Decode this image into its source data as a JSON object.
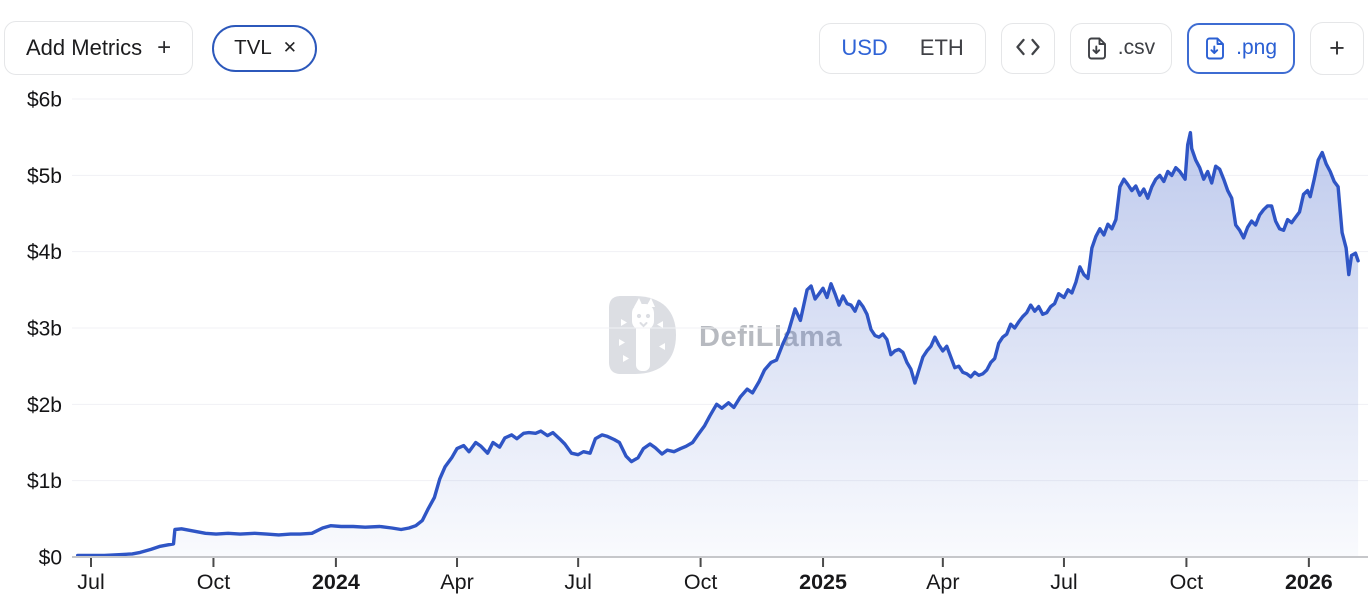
{
  "toolbar": {
    "add_metrics_label": "Add Metrics",
    "add_metrics_plus": "+",
    "metric_pill": {
      "label": "TVL",
      "close": "✕"
    },
    "currency": {
      "options": [
        "USD",
        "ETH"
      ],
      "selected": "USD"
    },
    "csv_label": ".csv",
    "png_label": ".png",
    "add_chart_plus": "+"
  },
  "watermark": {
    "text": "DefiLlama"
  },
  "colors": {
    "line": "#2f55c5",
    "fill_top": "rgba(65,99,201,0.36)",
    "fill_bottom": "rgba(65,99,201,0.03)",
    "accent_blue": "#2a5fd3",
    "pill_border": "#2c58bb",
    "axis_baseline": "#c6c7ca",
    "gridline": "#f0f1f4",
    "tick": "#4a4a4a"
  },
  "chart_data": {
    "type": "area",
    "title": "TVL",
    "unit": "USD billions",
    "ylim": [
      0,
      6
    ],
    "grid": "faint-horizontal",
    "legend_position": "none",
    "y_ticks": [
      {
        "label": "$0",
        "value": 0
      },
      {
        "label": "$1b",
        "value": 1
      },
      {
        "label": "$2b",
        "value": 2
      },
      {
        "label": "$3b",
        "value": 3
      },
      {
        "label": "$4b",
        "value": 4
      },
      {
        "label": "$5b",
        "value": 5
      },
      {
        "label": "$6b",
        "value": 6
      }
    ],
    "x_ticks": [
      {
        "label": "Jul",
        "date": "2023-07-01",
        "bold": false
      },
      {
        "label": "Oct",
        "date": "2023-10-01",
        "bold": false
      },
      {
        "label": "2024",
        "date": "2024-01-01",
        "bold": true
      },
      {
        "label": "Apr",
        "date": "2024-04-01",
        "bold": false
      },
      {
        "label": "Jul",
        "date": "2024-07-01",
        "bold": false
      },
      {
        "label": "Oct",
        "date": "2024-10-01",
        "bold": false
      },
      {
        "label": "2025",
        "date": "2025-01-01",
        "bold": true
      },
      {
        "label": "Apr",
        "date": "2025-04-01",
        "bold": false
      },
      {
        "label": "Jul",
        "date": "2025-07-01",
        "bold": false
      },
      {
        "label": "Oct",
        "date": "2025-10-01",
        "bold": false
      },
      {
        "label": "2026",
        "date": "2026-01-01",
        "bold": true
      }
    ],
    "x_range": [
      "2023-06-21",
      "2026-02-07"
    ],
    "series": [
      {
        "name": "TVL",
        "points": [
          [
            "2023-06-21",
            0.02
          ],
          [
            "2023-07-01",
            0.02
          ],
          [
            "2023-07-11",
            0.02
          ],
          [
            "2023-07-22",
            0.03
          ],
          [
            "2023-08-01",
            0.04
          ],
          [
            "2023-08-07",
            0.06
          ],
          [
            "2023-08-15",
            0.1
          ],
          [
            "2023-08-22",
            0.14
          ],
          [
            "2023-08-28",
            0.16
          ],
          [
            "2023-09-01",
            0.17
          ],
          [
            "2023-09-02",
            0.36
          ],
          [
            "2023-09-07",
            0.37
          ],
          [
            "2023-09-13",
            0.35
          ],
          [
            "2023-09-19",
            0.33
          ],
          [
            "2023-09-25",
            0.31
          ],
          [
            "2023-10-03",
            0.3
          ],
          [
            "2023-10-12",
            0.31
          ],
          [
            "2023-10-21",
            0.3
          ],
          [
            "2023-11-01",
            0.31
          ],
          [
            "2023-11-10",
            0.3
          ],
          [
            "2023-11-19",
            0.29
          ],
          [
            "2023-11-28",
            0.3
          ],
          [
            "2023-12-05",
            0.3
          ],
          [
            "2023-12-14",
            0.31
          ],
          [
            "2023-12-22",
            0.38
          ],
          [
            "2023-12-28",
            0.41
          ],
          [
            "2024-01-05",
            0.4
          ],
          [
            "2024-01-14",
            0.4
          ],
          [
            "2024-01-23",
            0.39
          ],
          [
            "2024-02-03",
            0.4
          ],
          [
            "2024-02-12",
            0.38
          ],
          [
            "2024-02-19",
            0.36
          ],
          [
            "2024-02-25",
            0.38
          ],
          [
            "2024-03-01",
            0.41
          ],
          [
            "2024-03-06",
            0.48
          ],
          [
            "2024-03-10",
            0.62
          ],
          [
            "2024-03-15",
            0.78
          ],
          [
            "2024-03-19",
            1.02
          ],
          [
            "2024-03-23",
            1.18
          ],
          [
            "2024-03-28",
            1.3
          ],
          [
            "2024-04-01",
            1.42
          ],
          [
            "2024-04-06",
            1.46
          ],
          [
            "2024-04-10",
            1.38
          ],
          [
            "2024-04-15",
            1.5
          ],
          [
            "2024-04-19",
            1.45
          ],
          [
            "2024-04-24",
            1.36
          ],
          [
            "2024-04-28",
            1.5
          ],
          [
            "2024-05-03",
            1.44
          ],
          [
            "2024-05-07",
            1.56
          ],
          [
            "2024-05-12",
            1.6
          ],
          [
            "2024-05-16",
            1.55
          ],
          [
            "2024-05-21",
            1.62
          ],
          [
            "2024-05-25",
            1.63
          ],
          [
            "2024-05-30",
            1.62
          ],
          [
            "2024-06-03",
            1.65
          ],
          [
            "2024-06-08",
            1.59
          ],
          [
            "2024-06-12",
            1.63
          ],
          [
            "2024-06-17",
            1.55
          ],
          [
            "2024-06-21",
            1.48
          ],
          [
            "2024-06-26",
            1.36
          ],
          [
            "2024-07-01",
            1.34
          ],
          [
            "2024-07-05",
            1.38
          ],
          [
            "2024-07-10",
            1.36
          ],
          [
            "2024-07-14",
            1.55
          ],
          [
            "2024-07-19",
            1.6
          ],
          [
            "2024-07-23",
            1.58
          ],
          [
            "2024-07-28",
            1.54
          ],
          [
            "2024-08-01",
            1.5
          ],
          [
            "2024-08-06",
            1.32
          ],
          [
            "2024-08-10",
            1.25
          ],
          [
            "2024-08-15",
            1.3
          ],
          [
            "2024-08-19",
            1.42
          ],
          [
            "2024-08-24",
            1.48
          ],
          [
            "2024-08-28",
            1.43
          ],
          [
            "2024-09-02",
            1.35
          ],
          [
            "2024-09-06",
            1.4
          ],
          [
            "2024-09-11",
            1.38
          ],
          [
            "2024-09-16",
            1.42
          ],
          [
            "2024-09-20",
            1.45
          ],
          [
            "2024-09-25",
            1.5
          ],
          [
            "2024-09-29",
            1.6
          ],
          [
            "2024-10-04",
            1.72
          ],
          [
            "2024-10-08",
            1.85
          ],
          [
            "2024-10-13",
            2.0
          ],
          [
            "2024-10-17",
            1.95
          ],
          [
            "2024-10-22",
            2.02
          ],
          [
            "2024-10-26",
            1.96
          ],
          [
            "2024-10-31",
            2.1
          ],
          [
            "2024-11-05",
            2.2
          ],
          [
            "2024-11-09",
            2.15
          ],
          [
            "2024-11-14",
            2.3
          ],
          [
            "2024-11-18",
            2.45
          ],
          [
            "2024-11-23",
            2.55
          ],
          [
            "2024-11-27",
            2.58
          ],
          [
            "2024-12-02",
            2.8
          ],
          [
            "2024-12-06",
            2.95
          ],
          [
            "2024-12-11",
            3.25
          ],
          [
            "2024-12-15",
            3.1
          ],
          [
            "2024-12-20",
            3.5
          ],
          [
            "2024-12-23",
            3.55
          ],
          [
            "2024-12-26",
            3.38
          ],
          [
            "2024-12-29",
            3.45
          ],
          [
            "2025-01-01",
            3.52
          ],
          [
            "2025-01-04",
            3.4
          ],
          [
            "2025-01-07",
            3.58
          ],
          [
            "2025-01-10",
            3.45
          ],
          [
            "2025-01-13",
            3.3
          ],
          [
            "2025-01-16",
            3.42
          ],
          [
            "2025-01-19",
            3.32
          ],
          [
            "2025-01-22",
            3.3
          ],
          [
            "2025-01-25",
            3.22
          ],
          [
            "2025-01-28",
            3.35
          ],
          [
            "2025-01-31",
            3.28
          ],
          [
            "2025-02-03",
            3.18
          ],
          [
            "2025-02-06",
            2.98
          ],
          [
            "2025-02-09",
            2.9
          ],
          [
            "2025-02-12",
            2.88
          ],
          [
            "2025-02-15",
            2.92
          ],
          [
            "2025-02-18",
            2.85
          ],
          [
            "2025-02-21",
            2.65
          ],
          [
            "2025-02-24",
            2.7
          ],
          [
            "2025-02-27",
            2.72
          ],
          [
            "2025-03-02",
            2.68
          ],
          [
            "2025-03-05",
            2.55
          ],
          [
            "2025-03-08",
            2.46
          ],
          [
            "2025-03-11",
            2.28
          ],
          [
            "2025-03-14",
            2.45
          ],
          [
            "2025-03-17",
            2.62
          ],
          [
            "2025-03-20",
            2.7
          ],
          [
            "2025-03-23",
            2.76
          ],
          [
            "2025-03-26",
            2.88
          ],
          [
            "2025-03-29",
            2.78
          ],
          [
            "2025-04-01",
            2.7
          ],
          [
            "2025-04-04",
            2.76
          ],
          [
            "2025-04-07",
            2.62
          ],
          [
            "2025-04-10",
            2.48
          ],
          [
            "2025-04-13",
            2.5
          ],
          [
            "2025-04-16",
            2.42
          ],
          [
            "2025-04-19",
            2.4
          ],
          [
            "2025-04-22",
            2.36
          ],
          [
            "2025-04-25",
            2.42
          ],
          [
            "2025-04-28",
            2.38
          ],
          [
            "2025-05-01",
            2.4
          ],
          [
            "2025-05-04",
            2.45
          ],
          [
            "2025-05-07",
            2.55
          ],
          [
            "2025-05-10",
            2.6
          ],
          [
            "2025-05-13",
            2.8
          ],
          [
            "2025-05-16",
            2.88
          ],
          [
            "2025-05-19",
            2.92
          ],
          [
            "2025-05-22",
            3.05
          ],
          [
            "2025-05-25",
            3.0
          ],
          [
            "2025-05-28",
            3.08
          ],
          [
            "2025-05-31",
            3.15
          ],
          [
            "2025-06-03",
            3.2
          ],
          [
            "2025-06-06",
            3.3
          ],
          [
            "2025-06-09",
            3.22
          ],
          [
            "2025-06-12",
            3.28
          ],
          [
            "2025-06-15",
            3.18
          ],
          [
            "2025-06-18",
            3.2
          ],
          [
            "2025-06-21",
            3.28
          ],
          [
            "2025-06-24",
            3.32
          ],
          [
            "2025-06-27",
            3.45
          ],
          [
            "2025-07-01",
            3.4
          ],
          [
            "2025-07-04",
            3.5
          ],
          [
            "2025-07-07",
            3.46
          ],
          [
            "2025-07-10",
            3.6
          ],
          [
            "2025-07-13",
            3.8
          ],
          [
            "2025-07-16",
            3.7
          ],
          [
            "2025-07-19",
            3.65
          ],
          [
            "2025-07-22",
            4.05
          ],
          [
            "2025-07-25",
            4.2
          ],
          [
            "2025-07-28",
            4.3
          ],
          [
            "2025-07-31",
            4.22
          ],
          [
            "2025-08-03",
            4.36
          ],
          [
            "2025-08-06",
            4.3
          ],
          [
            "2025-08-09",
            4.42
          ],
          [
            "2025-08-12",
            4.85
          ],
          [
            "2025-08-15",
            4.95
          ],
          [
            "2025-08-18",
            4.88
          ],
          [
            "2025-08-21",
            4.8
          ],
          [
            "2025-08-24",
            4.86
          ],
          [
            "2025-08-27",
            4.74
          ],
          [
            "2025-08-30",
            4.82
          ],
          [
            "2025-09-02",
            4.7
          ],
          [
            "2025-09-05",
            4.85
          ],
          [
            "2025-09-08",
            4.95
          ],
          [
            "2025-09-11",
            5.0
          ],
          [
            "2025-09-14",
            4.92
          ],
          [
            "2025-09-17",
            5.05
          ],
          [
            "2025-09-20",
            5.0
          ],
          [
            "2025-09-23",
            5.1
          ],
          [
            "2025-09-26",
            5.05
          ],
          [
            "2025-09-30",
            4.95
          ],
          [
            "2025-10-02",
            5.4
          ],
          [
            "2025-10-04",
            5.56
          ],
          [
            "2025-10-05",
            5.35
          ],
          [
            "2025-10-08",
            5.2
          ],
          [
            "2025-10-11",
            5.1
          ],
          [
            "2025-10-14",
            4.95
          ],
          [
            "2025-10-17",
            5.05
          ],
          [
            "2025-10-20",
            4.9
          ],
          [
            "2025-10-23",
            5.12
          ],
          [
            "2025-10-26",
            5.08
          ],
          [
            "2025-10-29",
            4.95
          ],
          [
            "2025-11-01",
            4.8
          ],
          [
            "2025-11-04",
            4.7
          ],
          [
            "2025-11-07",
            4.35
          ],
          [
            "2025-11-10",
            4.28
          ],
          [
            "2025-11-13",
            4.18
          ],
          [
            "2025-11-16",
            4.32
          ],
          [
            "2025-11-19",
            4.4
          ],
          [
            "2025-11-22",
            4.35
          ],
          [
            "2025-11-25",
            4.48
          ],
          [
            "2025-11-28",
            4.55
          ],
          [
            "2025-12-01",
            4.6
          ],
          [
            "2025-12-04",
            4.6
          ],
          [
            "2025-12-07",
            4.4
          ],
          [
            "2025-12-10",
            4.3
          ],
          [
            "2025-12-13",
            4.28
          ],
          [
            "2025-12-16",
            4.42
          ],
          [
            "2025-12-19",
            4.38
          ],
          [
            "2025-12-22",
            4.45
          ],
          [
            "2025-12-25",
            4.52
          ],
          [
            "2025-12-28",
            4.75
          ],
          [
            "2025-12-31",
            4.8
          ],
          [
            "2026-01-02",
            4.72
          ],
          [
            "2026-01-05",
            4.95
          ],
          [
            "2026-01-08",
            5.2
          ],
          [
            "2026-01-11",
            5.3
          ],
          [
            "2026-01-14",
            5.15
          ],
          [
            "2026-01-17",
            5.05
          ],
          [
            "2026-01-20",
            4.92
          ],
          [
            "2026-01-23",
            4.85
          ],
          [
            "2026-01-26",
            4.25
          ],
          [
            "2026-01-29",
            4.05
          ],
          [
            "2026-01-31",
            3.7
          ],
          [
            "2026-02-02",
            3.95
          ],
          [
            "2026-02-05",
            3.98
          ],
          [
            "2026-02-07",
            3.88
          ]
        ]
      }
    ]
  }
}
